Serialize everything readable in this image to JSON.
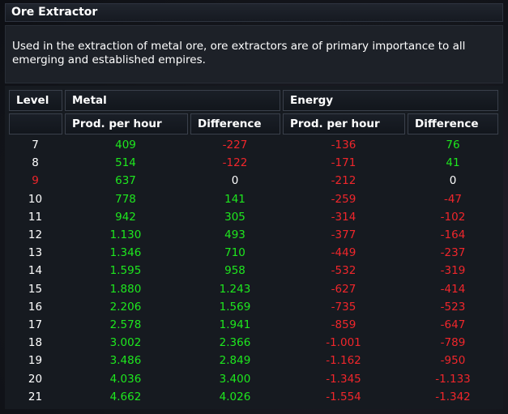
{
  "window": {
    "title": "Ore Extractor"
  },
  "description": "Used in the extraction of metal ore, ore extractors are of primary importance to all emerging and established empires.",
  "table": {
    "header": {
      "level": "Level",
      "metal": "Metal",
      "energy": "Energy",
      "prod_per_hour": "Prod. per hour",
      "difference": "Difference"
    },
    "current_level": "9",
    "colors": {
      "positive": "#1ee81e",
      "negative": "#f0262b",
      "neutral": "#ffffff"
    },
    "rows": [
      {
        "level": "7",
        "metal_prod": "409",
        "metal_diff": "-227",
        "energy_prod": "-136",
        "energy_diff": "76"
      },
      {
        "level": "8",
        "metal_prod": "514",
        "metal_diff": "-122",
        "energy_prod": "-171",
        "energy_diff": "41"
      },
      {
        "level": "9",
        "metal_prod": "637",
        "metal_diff": "0",
        "energy_prod": "-212",
        "energy_diff": "0"
      },
      {
        "level": "10",
        "metal_prod": "778",
        "metal_diff": "141",
        "energy_prod": "-259",
        "energy_diff": "-47"
      },
      {
        "level": "11",
        "metal_prod": "942",
        "metal_diff": "305",
        "energy_prod": "-314",
        "energy_diff": "-102"
      },
      {
        "level": "12",
        "metal_prod": "1.130",
        "metal_diff": "493",
        "energy_prod": "-377",
        "energy_diff": "-164"
      },
      {
        "level": "13",
        "metal_prod": "1.346",
        "metal_diff": "710",
        "energy_prod": "-449",
        "energy_diff": "-237"
      },
      {
        "level": "14",
        "metal_prod": "1.595",
        "metal_diff": "958",
        "energy_prod": "-532",
        "energy_diff": "-319"
      },
      {
        "level": "15",
        "metal_prod": "1.880",
        "metal_diff": "1.243",
        "energy_prod": "-627",
        "energy_diff": "-414"
      },
      {
        "level": "16",
        "metal_prod": "2.206",
        "metal_diff": "1.569",
        "energy_prod": "-735",
        "energy_diff": "-523"
      },
      {
        "level": "17",
        "metal_prod": "2.578",
        "metal_diff": "1.941",
        "energy_prod": "-859",
        "energy_diff": "-647"
      },
      {
        "level": "18",
        "metal_prod": "3.002",
        "metal_diff": "2.366",
        "energy_prod": "-1.001",
        "energy_diff": "-789"
      },
      {
        "level": "19",
        "metal_prod": "3.486",
        "metal_diff": "2.849",
        "energy_prod": "-1.162",
        "energy_diff": "-950"
      },
      {
        "level": "20",
        "metal_prod": "4.036",
        "metal_diff": "3.400",
        "energy_prod": "-1.345",
        "energy_diff": "-1.133"
      },
      {
        "level": "21",
        "metal_prod": "4.662",
        "metal_diff": "4.026",
        "energy_prod": "-1.554",
        "energy_diff": "-1.342"
      }
    ]
  }
}
